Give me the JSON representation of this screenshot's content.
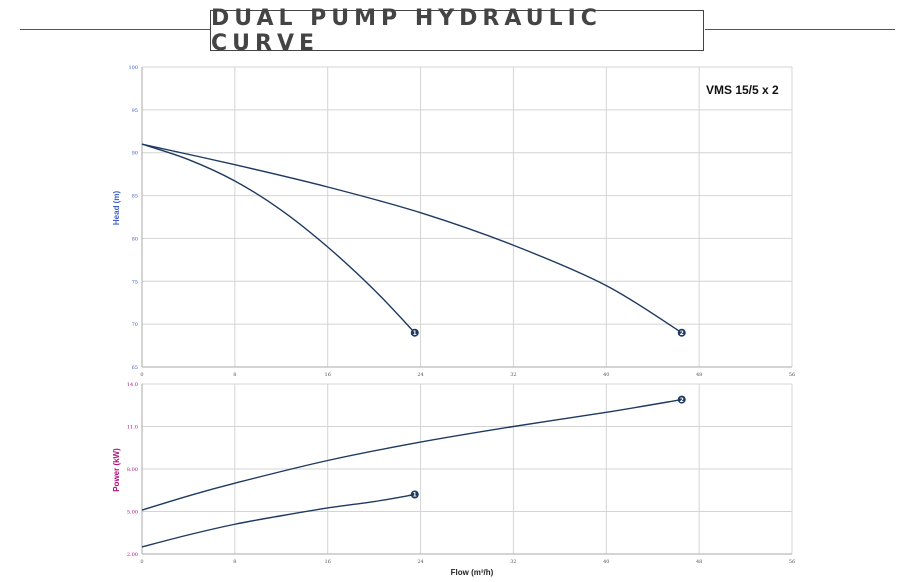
{
  "title": "DUAL PUMP HYDRAULIC CURVE",
  "model": "VMS 15/5 x 2",
  "colors": {
    "curve": "#1e3a60",
    "head_axis": "#3f63c7",
    "power_axis": "#b0127f"
  },
  "chart_data": [
    {
      "type": "line",
      "ylabel": "Head (m)",
      "xlabel": "",
      "xlim": [
        0,
        56
      ],
      "ylim": [
        65,
        100
      ],
      "xticks": [
        "0",
        "8",
        "16",
        "24",
        "32",
        "40",
        "48",
        "56"
      ],
      "yticks": [
        "65",
        "70",
        "75",
        "80",
        "85",
        "90",
        "95",
        "100"
      ],
      "grid": true,
      "series": [
        {
          "marker": "1",
          "points": [
            [
              0,
              91
            ],
            [
              4,
              89.2
            ],
            [
              8,
              86.7
            ],
            [
              12,
              83.3
            ],
            [
              16,
              79.0
            ],
            [
              20,
              74.0
            ],
            [
              23.5,
              69.0
            ]
          ]
        },
        {
          "marker": "2",
          "points": [
            [
              0,
              91
            ],
            [
              8,
              88.6
            ],
            [
              16,
              86.0
            ],
            [
              24,
              83.0
            ],
            [
              32,
              79.2
            ],
            [
              40,
              74.5
            ],
            [
              46.5,
              69.0
            ]
          ]
        }
      ]
    },
    {
      "type": "line",
      "ylabel": "Power (kW)",
      "xlabel": "Flow (m³/h)",
      "xlim": [
        0,
        56
      ],
      "ylim": [
        2.0,
        14.0
      ],
      "xticks": [
        "0",
        "8",
        "16",
        "24",
        "32",
        "40",
        "48",
        "56"
      ],
      "yticks": [
        "2.00",
        "5.00",
        "8.00",
        "11.0",
        "14.0"
      ],
      "ytick_values": [
        2,
        5,
        8,
        11,
        14
      ],
      "grid": true,
      "series": [
        {
          "marker": "1",
          "points": [
            [
              0,
              2.5
            ],
            [
              4,
              3.35
            ],
            [
              8,
              4.1
            ],
            [
              12,
              4.7
            ],
            [
              16,
              5.25
            ],
            [
              20,
              5.7
            ],
            [
              23.5,
              6.2
            ]
          ]
        },
        {
          "marker": "2",
          "points": [
            [
              0,
              5.1
            ],
            [
              4,
              6.1
            ],
            [
              8,
              7.0
            ],
            [
              16,
              8.6
            ],
            [
              24,
              9.9
            ],
            [
              32,
              11.0
            ],
            [
              40,
              12.0
            ],
            [
              46.5,
              12.9
            ]
          ]
        }
      ]
    }
  ]
}
